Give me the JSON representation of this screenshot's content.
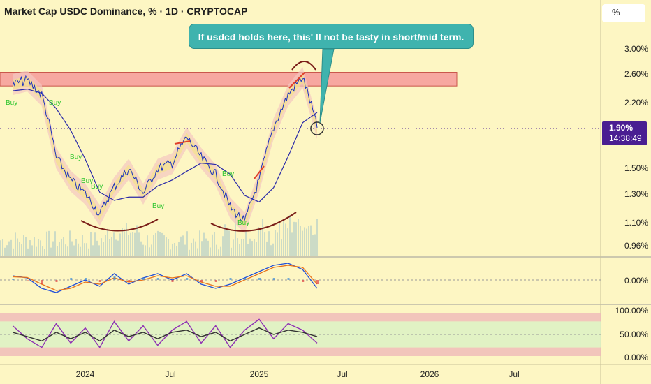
{
  "header": {
    "title": "Market Cap USDC Dominance, % · 1D · CRYPTOCAP",
    "scale_button": "%"
  },
  "annotation": {
    "text": "If usdcd holds here, this' ll not be tasty in short/mid term."
  },
  "price_badge": {
    "value": "1.90%",
    "countdown": "14:38:49",
    "color": "#4a1e92"
  },
  "chart_data": [
    {
      "type": "line",
      "title": "Market Cap USDC Dominance, % · 1D · CRYPTOCAP",
      "y_scale": "log",
      "yticks": [
        "0.96%",
        "1.10%",
        "1.30%",
        "1.50%",
        "1.90%",
        "2.20%",
        "2.60%",
        "3.00%"
      ],
      "xticks": [
        "2024",
        "Jul",
        "2025",
        "Jul",
        "2026",
        "Jul"
      ],
      "x": [
        "2023-08",
        "2023-09",
        "2023-10",
        "2023-11",
        "2023-12",
        "2024-01",
        "2024-02",
        "2024-03",
        "2024-04",
        "2024-05",
        "2024-06",
        "2024-07",
        "2024-08",
        "2024-09",
        "2024-10",
        "2024-11",
        "2024-12",
        "2025-01",
        "2025-02",
        "2025-03",
        "2025-04",
        "2025-05"
      ],
      "series": [
        {
          "values": [
            2.45,
            2.5,
            2.3,
            1.6,
            1.4,
            1.3,
            1.15,
            1.35,
            1.5,
            1.3,
            1.5,
            1.55,
            1.8,
            1.6,
            1.45,
            1.2,
            1.1,
            1.4,
            1.9,
            2.3,
            2.55,
            1.9
          ]
        }
      ],
      "resistance_zone": {
        "low": 2.42,
        "high": 2.62,
        "color": "#f7a8a0"
      },
      "colors": {
        "price": "#1a2fbf",
        "baseline": "#2a2aa8",
        "volume": "#c7d8c7",
        "arc": "#7a1e18"
      },
      "buy_signal_label": "Buy",
      "grid": false
    },
    {
      "type": "line",
      "yticks": [
        "0.00%"
      ],
      "series": [
        {
          "values": [
            0.02,
            0.01,
            -0.04,
            -0.06,
            -0.03,
            0.0,
            -0.03,
            0.03,
            -0.02,
            0.01,
            0.03,
            0.0,
            0.03,
            -0.02,
            -0.04,
            -0.02,
            0.01,
            0.04,
            0.07,
            0.08,
            0.05,
            -0.04
          ]
        },
        {
          "values": [
            0.015,
            0.012,
            -0.02,
            -0.05,
            -0.04,
            -0.01,
            -0.02,
            0.01,
            -0.01,
            0.0,
            0.02,
            0.01,
            0.02,
            -0.01,
            -0.03,
            -0.03,
            0.0,
            0.03,
            0.06,
            0.07,
            0.06,
            -0.02
          ]
        }
      ],
      "colors": [
        "#1f4ed8",
        "#e8731a"
      ]
    },
    {
      "type": "line",
      "yticks": [
        "100.00%",
        "50.00%",
        "0.00%"
      ],
      "bands": [
        {
          "low": 80,
          "high": 100,
          "color": "#efb9b9"
        },
        {
          "low": 20,
          "high": 80,
          "color": "#d9f1c4"
        },
        {
          "low": 0,
          "high": 20,
          "color": "#efb9b9"
        }
      ],
      "series": [
        {
          "values": [
            70,
            40,
            20,
            75,
            30,
            65,
            20,
            80,
            35,
            70,
            25,
            60,
            80,
            30,
            70,
            20,
            60,
            85,
            40,
            75,
            60,
            30
          ]
        },
        {
          "values": [
            55,
            45,
            35,
            55,
            40,
            55,
            35,
            60,
            45,
            55,
            40,
            55,
            60,
            45,
            55,
            35,
            50,
            65,
            50,
            60,
            55,
            45
          ]
        }
      ],
      "colors": [
        "#8e2fb3",
        "#333333"
      ]
    }
  ]
}
